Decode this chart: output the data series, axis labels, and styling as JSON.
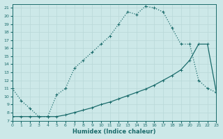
{
  "xlabel": "Humidex (Indice chaleur)",
  "xlim": [
    0,
    23
  ],
  "ylim": [
    7,
    21.5
  ],
  "xticks": [
    0,
    1,
    2,
    3,
    4,
    5,
    6,
    7,
    8,
    9,
    10,
    11,
    12,
    13,
    14,
    15,
    16,
    17,
    18,
    19,
    20,
    21,
    22,
    23
  ],
  "yticks": [
    7,
    8,
    9,
    10,
    11,
    12,
    13,
    14,
    15,
    16,
    17,
    18,
    19,
    20,
    21
  ],
  "bg_color": "#cce8e8",
  "grid_color": "#b8d8d8",
  "line_color": "#1a6b6b",
  "curve1_x": [
    0,
    1,
    2,
    3,
    4,
    5,
    6,
    7,
    8,
    9,
    10,
    11,
    12,
    13,
    14,
    15,
    16,
    17,
    18,
    19,
    20,
    21,
    22,
    23
  ],
  "curve1_y": [
    11.0,
    9.5,
    8.5,
    7.5,
    7.5,
    10.2,
    11.0,
    13.5,
    14.5,
    15.5,
    16.5,
    17.5,
    19.0,
    20.5,
    20.2,
    21.2,
    21.0,
    20.5,
    18.5,
    16.5,
    16.5,
    12.0,
    11.0,
    10.5
  ],
  "curve2_x": [
    0,
    1,
    2,
    3,
    4,
    5,
    6,
    7,
    8,
    9,
    10,
    11,
    12,
    13,
    14,
    15,
    16,
    17,
    18,
    19,
    20,
    21,
    22,
    23
  ],
  "curve2_y": [
    7.5,
    7.5,
    7.5,
    7.5,
    7.5,
    7.5,
    7.7,
    8.0,
    8.3,
    8.6,
    9.0,
    9.3,
    9.7,
    10.1,
    10.5,
    10.9,
    11.4,
    12.0,
    12.6,
    13.3,
    14.5,
    16.5,
    16.5,
    10.5
  ]
}
